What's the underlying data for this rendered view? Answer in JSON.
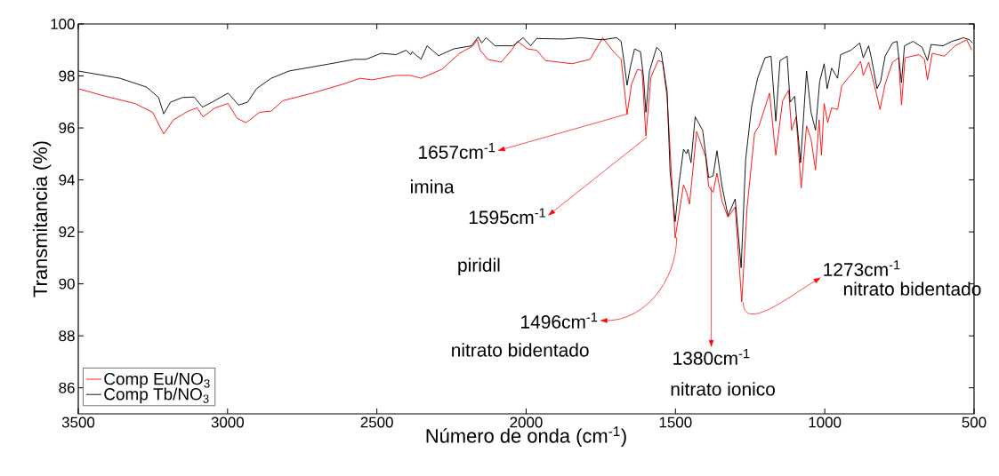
{
  "chart_data": {
    "type": "line",
    "xlabel": "Número de onda (cm$^{-1}$)",
    "ylabel": "Transmitancia (%)",
    "xlim": [
      3500,
      500
    ],
    "xticks": [
      3500,
      3000,
      2500,
      2000,
      1500,
      1000,
      500
    ],
    "ylim": [
      85,
      100
    ],
    "yticks": [
      86,
      88,
      90,
      92,
      94,
      96,
      98,
      100
    ],
    "legend": "bottom left",
    "series": [
      {
        "name": "Comp Eu/NO$_{3}$",
        "color": "#ff0000",
        "x": [
          3500,
          3410,
          3310,
          3251,
          3214,
          3181,
          3131,
          3102,
          3082,
          3042,
          2998,
          2968,
          2938,
          2893,
          2854,
          2814,
          2715,
          2615,
          2556,
          2516,
          2436,
          2387,
          2352,
          2283,
          2223,
          2178,
          2164,
          2154,
          2129,
          2084,
          2049,
          2029,
          1995,
          1965,
          1935,
          1846,
          1786,
          1744,
          1707,
          1682,
          1662,
          1647,
          1627,
          1612,
          1599,
          1582,
          1558,
          1543,
          1528,
          1501,
          1473,
          1463,
          1453,
          1429,
          1399,
          1389,
          1374,
          1361,
          1344,
          1324,
          1300,
          1278,
          1260,
          1235,
          1220,
          1185,
          1164,
          1141,
          1121,
          1111,
          1096,
          1079,
          1061,
          1046,
          1031,
          1019,
          1011,
          1002,
          990,
          977,
          957,
          943,
          902,
          880,
          871,
          853,
          825,
          815,
          798,
          773,
          753,
          743,
          731,
          684,
          666,
          656,
          640,
          599,
          564,
          525,
          507
        ],
        "values": [
          97.51,
          97.22,
          96.94,
          96.6,
          95.77,
          96.31,
          96.65,
          96.77,
          96.43,
          96.77,
          96.94,
          96.37,
          96.2,
          96.6,
          96.65,
          97.05,
          97.34,
          97.68,
          97.91,
          97.85,
          98.02,
          98.02,
          97.91,
          98.25,
          98.87,
          99.16,
          99.39,
          98.99,
          98.64,
          98.53,
          98.99,
          99.33,
          99.04,
          98.99,
          98.59,
          98.47,
          98.64,
          99.47,
          98.93,
          98.64,
          96.54,
          97.68,
          98.25,
          98.21,
          95.69,
          97.96,
          98.59,
          98.53,
          97.17,
          91.76,
          93.81,
          93.52,
          93.07,
          95.86,
          94.89,
          93.75,
          93.52,
          94.26,
          93.18,
          92.56,
          92.96,
          89.31,
          92.96,
          95.8,
          96.08,
          97.34,
          94.95,
          97.05,
          97.45,
          95.91,
          96.43,
          93.69,
          96.08,
          95.57,
          94.38,
          96.31,
          94.95,
          96.94,
          96.2,
          96.77,
          96.71,
          97.62,
          98.19,
          98.56,
          98.02,
          98.53,
          97.22,
          96.71,
          97.68,
          98.53,
          98.7,
          96.88,
          98.7,
          98.82,
          98.64,
          97.85,
          98.87,
          98.76,
          99.16,
          99.39,
          98.99
        ]
      },
      {
        "name": "Comp Tb/NO$_{3}$",
        "color": "#000000",
        "x": [
          3500,
          3360,
          3271,
          3231,
          3214,
          3191,
          3151,
          3112,
          3084,
          3052,
          2998,
          2963,
          2933,
          2903,
          2854,
          2794,
          2655,
          2575,
          2536,
          2486,
          2436,
          2402,
          2387,
          2382,
          2352,
          2332,
          2293,
          2243,
          2183,
          2161,
          2149,
          2134,
          2104,
          2044,
          2010,
          1985,
          1965,
          1876,
          1816,
          1746,
          1697,
          1682,
          1672,
          1662,
          1652,
          1637,
          1617,
          1607,
          1599,
          1587,
          1563,
          1548,
          1528,
          1518,
          1501,
          1488,
          1473,
          1463,
          1458,
          1448,
          1434,
          1409,
          1389,
          1374,
          1361,
          1344,
          1324,
          1300,
          1280,
          1265,
          1245,
          1225,
          1200,
          1180,
          1164,
          1150,
          1126,
          1116,
          1101,
          1081,
          1061,
          1046,
          1031,
          1017,
          1002,
          992,
          977,
          957,
          947,
          912,
          883,
          871,
          853,
          843,
          825,
          813,
          798,
          773,
          758,
          743,
          733,
          704,
          674,
          656,
          644,
          604,
          574,
          535,
          515,
          505
        ],
        "values": [
          98.19,
          97.91,
          97.57,
          97.17,
          96.54,
          96.99,
          97.17,
          97.19,
          96.8,
          96.99,
          97.34,
          96.88,
          96.99,
          97.51,
          97.91,
          98.19,
          98.47,
          98.64,
          98.64,
          98.87,
          98.82,
          98.99,
          98.82,
          98.93,
          98.64,
          99.16,
          98.78,
          99.04,
          99.16,
          99.5,
          99.27,
          99.47,
          99.16,
          99.16,
          99.47,
          99.16,
          99.44,
          99.42,
          99.47,
          99.39,
          99.47,
          99.33,
          98.53,
          97.64,
          98.3,
          99.04,
          98.93,
          97.96,
          96.6,
          98.19,
          99.1,
          98.93,
          97.4,
          94.32,
          92.39,
          93.87,
          95.18,
          95.01,
          95.18,
          94.66,
          96.43,
          95.91,
          94.09,
          94.15,
          95.12,
          93.75,
          92.62,
          93.27,
          90.62,
          94.78,
          96.82,
          97.91,
          98.7,
          98.76,
          96.26,
          98.59,
          98.76,
          96.99,
          97.22,
          94.66,
          98.19,
          96.6,
          95.91,
          97.79,
          98.47,
          97.51,
          98.3,
          97.91,
          98.82,
          98.99,
          99.27,
          98.7,
          99.16,
          98.64,
          97.51,
          97.79,
          98.76,
          99.27,
          99.33,
          97.74,
          99.16,
          99.33,
          99.1,
          98.59,
          99.21,
          99.16,
          99.33,
          99.47,
          99.39,
          99.27
        ]
      }
    ],
    "annotations": [
      {
        "text": "1657cm$^{-1}$",
        "x": 1657,
        "y": 96.55
      },
      "imina",
      {
        "text": "1595cm$^{-1}$",
        "x": 1595,
        "y": 95.65
      },
      "piridil",
      {
        "text": "1496cm$^{-1}$",
        "x": 1496,
        "y": 91.8
      },
      "nitrato bidentado",
      {
        "text": "1380cm$^{-1}$",
        "x": 1380,
        "y": 93.75
      },
      "nitrato ionico",
      {
        "text": "1273cm$^{-1}$",
        "x": 1273,
        "y": 89.3
      },
      "nitrato bidentado"
    ]
  }
}
